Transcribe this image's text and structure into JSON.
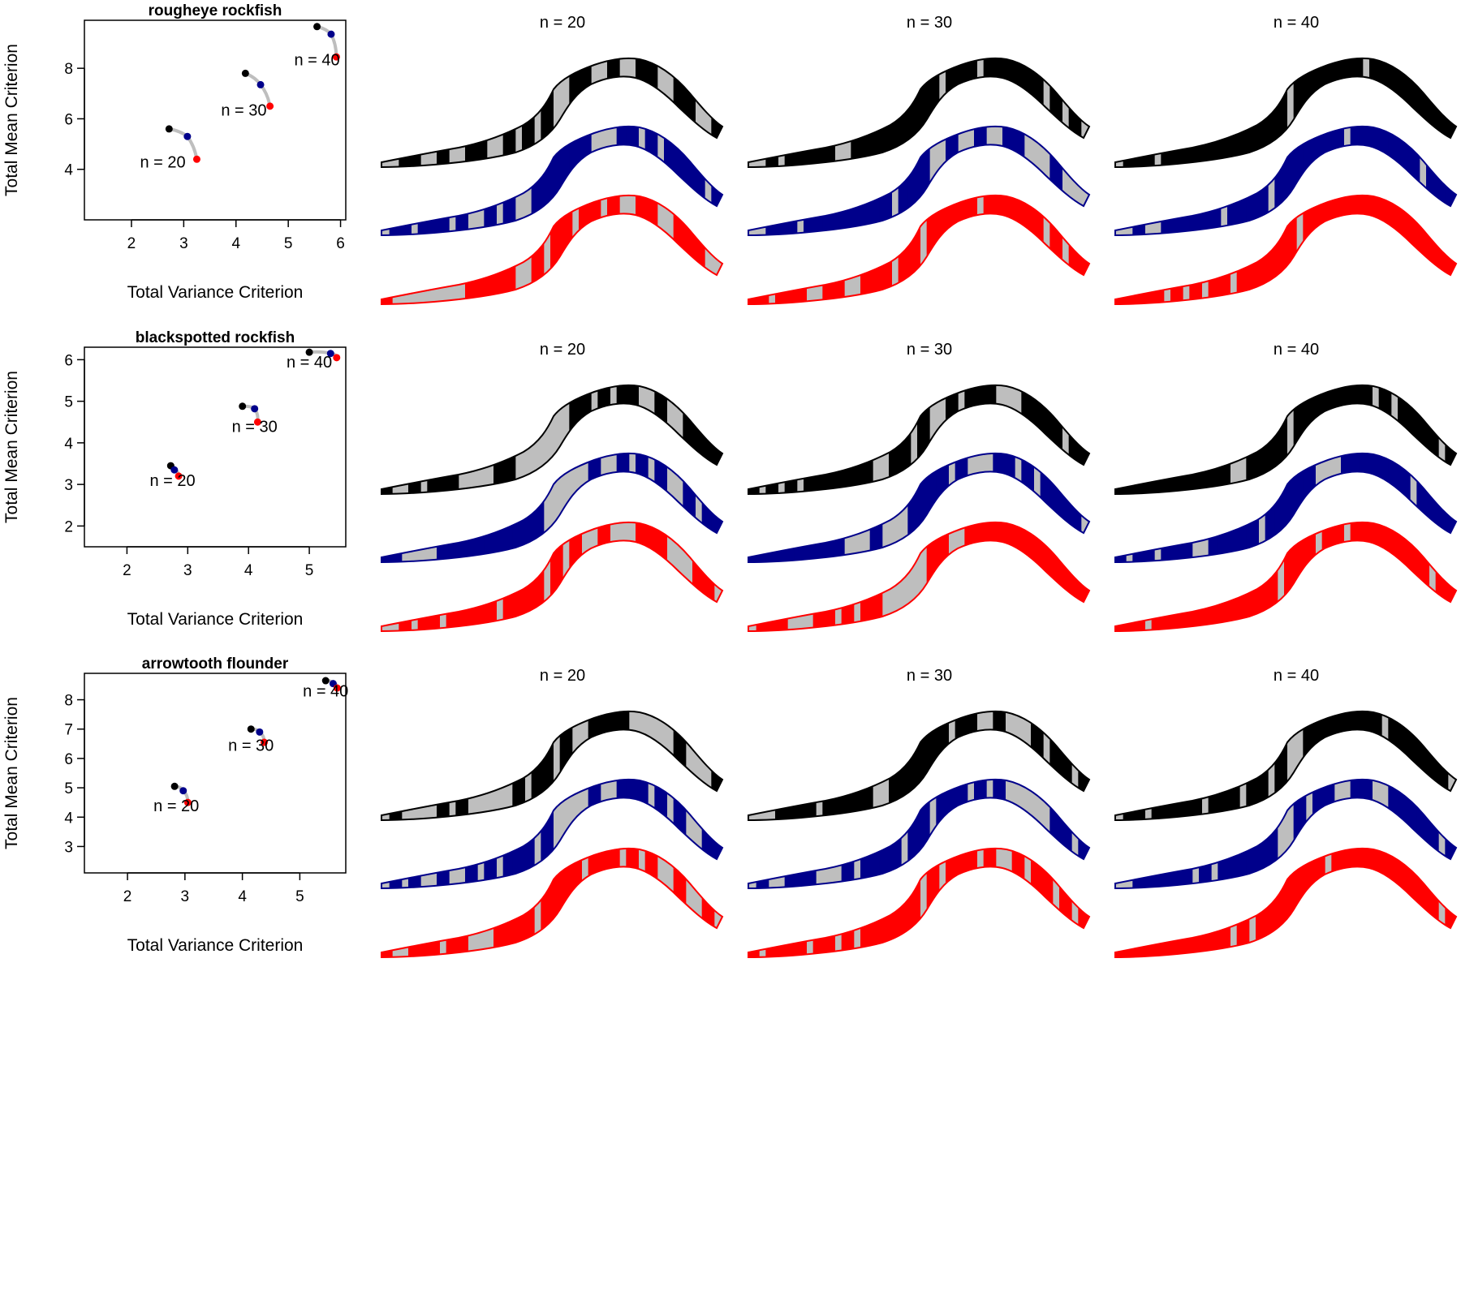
{
  "colors": {
    "series": [
      "#000000",
      "#00008B",
      "#FF0000"
    ],
    "connector": "#bebebe",
    "unselected": "#bebebe"
  },
  "map_titles": [
    "n = 20",
    "n = 30",
    "n = 40"
  ],
  "chart_data": [
    {
      "type": "scatter",
      "title": "rougheye rockfish",
      "xlabel": "Total Variance Criterion",
      "ylabel": "Total Mean Criterion",
      "xlim": [
        1.1,
        6.1
      ],
      "ylim": [
        2.0,
        9.9
      ],
      "xticks": [
        2,
        3,
        4,
        5,
        6
      ],
      "yticks": [
        4,
        6,
        8
      ],
      "groups": [
        {
          "label": "n = 20",
          "x": [
            2.72,
            3.07,
            3.25
          ],
          "y": [
            5.6,
            5.3,
            4.4
          ],
          "label_at": [
            2.6,
            4.3
          ]
        },
        {
          "label": "n = 30",
          "x": [
            4.18,
            4.47,
            4.65
          ],
          "y": [
            7.8,
            7.35,
            6.5
          ],
          "label_at": [
            4.15,
            6.35
          ]
        },
        {
          "label": "n = 40",
          "x": [
            5.55,
            5.82,
            5.92
          ],
          "y": [
            9.65,
            9.35,
            8.45
          ],
          "label_at": [
            5.55,
            8.35
          ]
        }
      ]
    },
    {
      "type": "scatter",
      "title": "blackspotted rockfish",
      "xlabel": "Total Variance Criterion",
      "ylabel": "Total Mean Criterion",
      "xlim": [
        1.3,
        5.6
      ],
      "ylim": [
        1.5,
        6.3
      ],
      "xticks": [
        2,
        3,
        4,
        5
      ],
      "yticks": [
        2,
        3,
        4,
        5,
        6
      ],
      "groups": [
        {
          "label": "n = 20",
          "x": [
            2.72,
            2.78,
            2.85
          ],
          "y": [
            3.45,
            3.35,
            3.2
          ],
          "label_at": [
            2.75,
            3.1
          ]
        },
        {
          "label": "n = 30",
          "x": [
            3.9,
            4.1,
            4.15
          ],
          "y": [
            4.88,
            4.82,
            4.5
          ],
          "label_at": [
            4.1,
            4.4
          ]
        },
        {
          "label": "n = 40",
          "x": [
            5.0,
            5.35,
            5.45
          ],
          "y": [
            6.18,
            6.15,
            6.05
          ],
          "label_at": [
            5.0,
            5.95
          ]
        }
      ]
    },
    {
      "type": "scatter",
      "title": "arrowtooth flounder",
      "xlabel": "Total Variance Criterion",
      "ylabel": "Total Mean Criterion",
      "xlim": [
        1.25,
        5.8
      ],
      "ylim": [
        2.1,
        8.9
      ],
      "xticks": [
        2,
        3,
        4,
        5
      ],
      "yticks": [
        3,
        4,
        5,
        6,
        7,
        8
      ],
      "groups": [
        {
          "label": "n = 20",
          "x": [
            2.82,
            2.97,
            3.05
          ],
          "y": [
            5.05,
            4.9,
            4.5
          ],
          "label_at": [
            2.85,
            4.4
          ]
        },
        {
          "label": "n = 30",
          "x": [
            4.15,
            4.3,
            4.38
          ],
          "y": [
            7.0,
            6.9,
            6.55
          ],
          "label_at": [
            4.15,
            6.45
          ]
        },
        {
          "label": "n = 40",
          "x": [
            5.45,
            5.58,
            5.65
          ],
          "y": [
            8.65,
            8.55,
            8.4
          ],
          "label_at": [
            5.45,
            8.3
          ]
        }
      ]
    }
  ]
}
